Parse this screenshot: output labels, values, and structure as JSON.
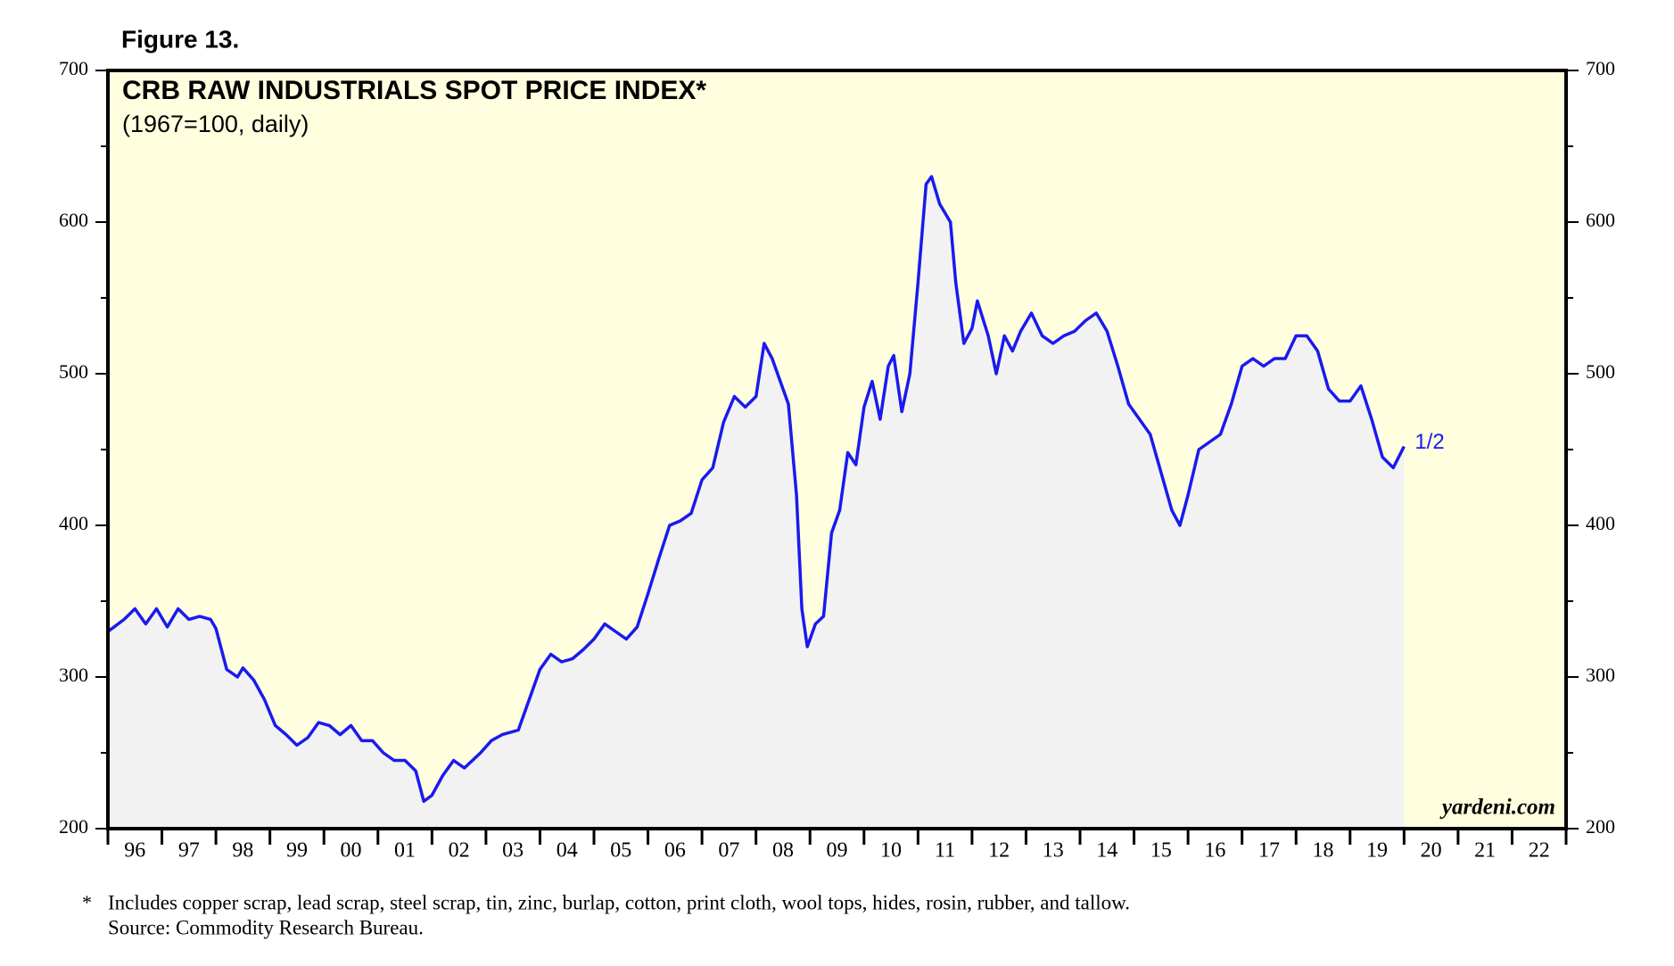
{
  "chart_data": {
    "type": "line",
    "figure_label": "Figure 13.",
    "title": "CRB RAW INDUSTRIALS SPOT PRICE INDEX*",
    "subtitle": "(1967=100, daily)",
    "end_label": "1/2",
    "source_logo": "yardeni.com",
    "footnote": [
      "*",
      "Includes copper scrap, lead scrap, steel scrap, tin, zinc, burlap, cotton, print cloth, wool tops, hides, rosin, rubber, and tallow.",
      "Source: Commodity Research Bureau."
    ],
    "background": "#ffffe0",
    "area_color": "#f2f2f2",
    "x": [
      1996.0,
      1996.3,
      1996.5,
      1996.7,
      1996.9,
      1997.1,
      1997.3,
      1997.5,
      1997.7,
      1997.9,
      1998.0,
      1998.2,
      1998.4,
      1998.5,
      1998.7,
      1998.9,
      1999.1,
      1999.3,
      1999.5,
      1999.7,
      1999.9,
      2000.1,
      2000.3,
      2000.5,
      2000.7,
      2000.9,
      2001.1,
      2001.3,
      2001.5,
      2001.7,
      2001.85,
      2002.0,
      2002.2,
      2002.4,
      2002.6,
      2002.9,
      2003.1,
      2003.3,
      2003.6,
      2003.8,
      2004.0,
      2004.2,
      2004.4,
      2004.6,
      2004.8,
      2005.0,
      2005.2,
      2005.4,
      2005.6,
      2005.8,
      2006.0,
      2006.2,
      2006.4,
      2006.6,
      2006.8,
      2007.0,
      2007.2,
      2007.4,
      2007.6,
      2007.8,
      2008.0,
      2008.15,
      2008.3,
      2008.45,
      2008.6,
      2008.75,
      2008.85,
      2008.95,
      2009.1,
      2009.25,
      2009.4,
      2009.55,
      2009.7,
      2009.85,
      2010.0,
      2010.15,
      2010.3,
      2010.45,
      2010.55,
      2010.7,
      2010.85,
      2011.0,
      2011.15,
      2011.25,
      2011.4,
      2011.6,
      2011.7,
      2011.85,
      2012.0,
      2012.1,
      2012.3,
      2012.45,
      2012.6,
      2012.75,
      2012.9,
      2013.1,
      2013.3,
      2013.5,
      2013.7,
      2013.9,
      2014.1,
      2014.3,
      2014.5,
      2014.7,
      2014.9,
      2015.1,
      2015.3,
      2015.5,
      2015.7,
      2015.85,
      2016.0,
      2016.2,
      2016.4,
      2016.6,
      2016.8,
      2017.0,
      2017.2,
      2017.4,
      2017.6,
      2017.8,
      2018.0,
      2018.2,
      2018.4,
      2018.6,
      2018.8,
      2019.0,
      2019.2,
      2019.4,
      2019.6,
      2019.8,
      2020.0
    ],
    "series": [
      {
        "color": "#1a1aee",
        "values": [
          330,
          338,
          345,
          335,
          345,
          333,
          345,
          338,
          340,
          338,
          332,
          305,
          300,
          306,
          298,
          285,
          268,
          262,
          255,
          260,
          270,
          268,
          262,
          268,
          258,
          258,
          250,
          245,
          245,
          238,
          218,
          222,
          235,
          245,
          240,
          250,
          258,
          262,
          265,
          285,
          305,
          315,
          310,
          312,
          318,
          325,
          335,
          330,
          325,
          333,
          355,
          378,
          400,
          403,
          408,
          430,
          438,
          468,
          485,
          478,
          485,
          520,
          510,
          495,
          480,
          420,
          345,
          320,
          335,
          340,
          395,
          410,
          448,
          440,
          478,
          495,
          470,
          505,
          512,
          475,
          500,
          560,
          625,
          630,
          612,
          600,
          560,
          520,
          530,
          548,
          525,
          500,
          525,
          515,
          528,
          540,
          525,
          520,
          525,
          528,
          535,
          540,
          528,
          505,
          480,
          470,
          460,
          435,
          410,
          400,
          420,
          450,
          455,
          460,
          480,
          505,
          510,
          505,
          510,
          510,
          525,
          525,
          515,
          490,
          482,
          482,
          492,
          470,
          445,
          438,
          452
        ]
      }
    ],
    "xlim": [
      1996,
      2023
    ],
    "xticks": [
      {
        "value": 1996,
        "label": "96"
      },
      {
        "value": 1997,
        "label": "97"
      },
      {
        "value": 1998,
        "label": "98"
      },
      {
        "value": 1999,
        "label": "99"
      },
      {
        "value": 2000,
        "label": "00"
      },
      {
        "value": 2001,
        "label": "01"
      },
      {
        "value": 2002,
        "label": "02"
      },
      {
        "value": 2003,
        "label": "03"
      },
      {
        "value": 2004,
        "label": "04"
      },
      {
        "value": 2005,
        "label": "05"
      },
      {
        "value": 2006,
        "label": "06"
      },
      {
        "value": 2007,
        "label": "07"
      },
      {
        "value": 2008,
        "label": "08"
      },
      {
        "value": 2009,
        "label": "09"
      },
      {
        "value": 2010,
        "label": "10"
      },
      {
        "value": 2011,
        "label": "11"
      },
      {
        "value": 2012,
        "label": "12"
      },
      {
        "value": 2013,
        "label": "13"
      },
      {
        "value": 2014,
        "label": "14"
      },
      {
        "value": 2015,
        "label": "15"
      },
      {
        "value": 2016,
        "label": "16"
      },
      {
        "value": 2017,
        "label": "17"
      },
      {
        "value": 2018,
        "label": "18"
      },
      {
        "value": 2019,
        "label": "19"
      },
      {
        "value": 2020,
        "label": "20"
      },
      {
        "value": 2021,
        "label": "21"
      },
      {
        "value": 2022,
        "label": "22"
      }
    ],
    "ylim": [
      200,
      700
    ],
    "yticks": [
      200,
      300,
      400,
      500,
      600,
      700
    ],
    "y_minor_ticks": [
      250,
      350,
      450,
      550,
      650
    ]
  }
}
